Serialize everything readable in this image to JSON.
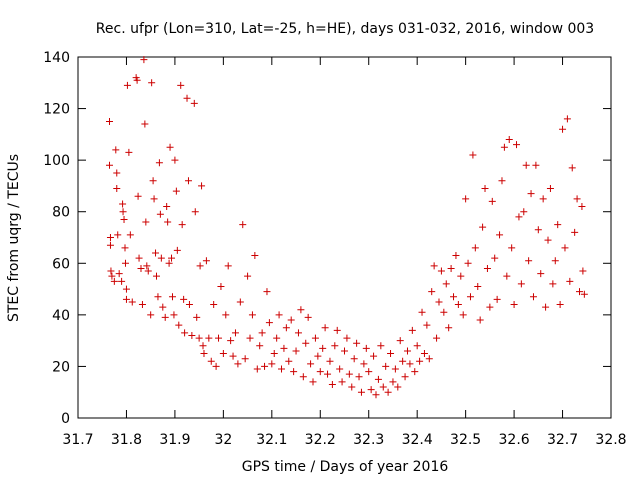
{
  "chart_data": {
    "type": "scatter",
    "title": "Rec. ufpr (Lon=310, Lat=-25, h=HE), days 031-032, 2016, window 003",
    "xlabel": "GPS time / Days of year 2016",
    "ylabel": "STEC from uqrg / TECUs",
    "xlim": [
      31.7,
      32.8
    ],
    "ylim": [
      0,
      140
    ],
    "xticks": [
      "31.7",
      "31.8",
      "31.9",
      "32",
      "32.1",
      "32.2",
      "32.3",
      "32.4",
      "32.5",
      "32.6",
      "32.7",
      "32.8"
    ],
    "yticks": [
      "0",
      "20",
      "40",
      "60",
      "80",
      "100",
      "120",
      "140"
    ],
    "grid": false,
    "marker": "plus",
    "color": "#cc0000",
    "series": [
      {
        "name": "STEC",
        "points": [
          [
            31.765,
            115
          ],
          [
            31.765,
            98
          ],
          [
            31.767,
            70
          ],
          [
            31.767,
            67
          ],
          [
            31.768,
            57
          ],
          [
            31.77,
            55
          ],
          [
            31.775,
            53
          ],
          [
            31.778,
            104
          ],
          [
            31.78,
            95
          ],
          [
            31.78,
            89
          ],
          [
            31.782,
            71
          ],
          [
            31.785,
            56
          ],
          [
            31.79,
            53
          ],
          [
            31.792,
            83
          ],
          [
            31.793,
            80
          ],
          [
            31.795,
            77
          ],
          [
            31.797,
            66
          ],
          [
            31.798,
            60
          ],
          [
            31.8,
            50
          ],
          [
            31.8,
            46
          ],
          [
            31.802,
            129
          ],
          [
            31.805,
            103
          ],
          [
            31.808,
            71
          ],
          [
            31.812,
            45
          ],
          [
            31.82,
            132
          ],
          [
            31.822,
            131
          ],
          [
            31.824,
            86
          ],
          [
            31.826,
            62
          ],
          [
            31.83,
            58
          ],
          [
            31.833,
            44
          ],
          [
            31.836,
            139
          ],
          [
            31.838,
            114
          ],
          [
            31.84,
            76
          ],
          [
            31.842,
            59
          ],
          [
            31.845,
            57
          ],
          [
            31.85,
            40
          ],
          [
            31.852,
            130
          ],
          [
            31.855,
            92
          ],
          [
            31.857,
            85
          ],
          [
            31.86,
            64
          ],
          [
            31.862,
            55
          ],
          [
            31.865,
            47
          ],
          [
            31.868,
            99
          ],
          [
            31.87,
            79
          ],
          [
            31.872,
            62
          ],
          [
            31.875,
            43
          ],
          [
            31.88,
            39
          ],
          [
            31.883,
            82
          ],
          [
            31.885,
            76
          ],
          [
            31.888,
            60
          ],
          [
            31.89,
            105
          ],
          [
            31.893,
            62
          ],
          [
            31.895,
            47
          ],
          [
            31.898,
            40
          ],
          [
            31.9,
            100
          ],
          [
            31.903,
            88
          ],
          [
            31.905,
            65
          ],
          [
            31.908,
            36
          ],
          [
            31.912,
            129
          ],
          [
            31.915,
            75
          ],
          [
            31.918,
            46
          ],
          [
            31.92,
            33
          ],
          [
            31.925,
            124
          ],
          [
            31.928,
            92
          ],
          [
            31.93,
            44
          ],
          [
            31.935,
            32
          ],
          [
            31.94,
            122
          ],
          [
            31.942,
            80
          ],
          [
            31.945,
            39
          ],
          [
            31.95,
            31
          ],
          [
            31.952,
            59
          ],
          [
            31.955,
            90
          ],
          [
            31.958,
            28
          ],
          [
            31.96,
            25
          ],
          [
            31.965,
            61
          ],
          [
            31.97,
            31
          ],
          [
            31.975,
            22
          ],
          [
            31.98,
            44
          ],
          [
            31.985,
            20
          ],
          [
            31.99,
            31
          ],
          [
            31.995,
            51
          ],
          [
            32.0,
            25
          ],
          [
            32.005,
            40
          ],
          [
            32.01,
            59
          ],
          [
            32.015,
            30
          ],
          [
            32.02,
            24
          ],
          [
            32.025,
            33
          ],
          [
            32.03,
            21
          ],
          [
            32.035,
            45
          ],
          [
            32.04,
            75
          ],
          [
            32.045,
            23
          ],
          [
            32.05,
            55
          ],
          [
            32.055,
            31
          ],
          [
            32.06,
            40
          ],
          [
            32.065,
            63
          ],
          [
            32.07,
            19
          ],
          [
            32.075,
            28
          ],
          [
            32.08,
            33
          ],
          [
            32.085,
            20
          ],
          [
            32.09,
            49
          ],
          [
            32.095,
            37
          ],
          [
            32.1,
            21
          ],
          [
            32.105,
            25
          ],
          [
            32.11,
            31
          ],
          [
            32.115,
            40
          ],
          [
            32.12,
            19
          ],
          [
            32.125,
            27
          ],
          [
            32.13,
            35
          ],
          [
            32.135,
            22
          ],
          [
            32.14,
            38
          ],
          [
            32.145,
            18
          ],
          [
            32.15,
            26
          ],
          [
            32.155,
            33
          ],
          [
            32.16,
            42
          ],
          [
            32.165,
            16
          ],
          [
            32.17,
            29
          ],
          [
            32.175,
            39
          ],
          [
            32.18,
            21
          ],
          [
            32.185,
            14
          ],
          [
            32.19,
            31
          ],
          [
            32.195,
            24
          ],
          [
            32.2,
            18
          ],
          [
            32.205,
            27
          ],
          [
            32.21,
            35
          ],
          [
            32.215,
            17
          ],
          [
            32.22,
            22
          ],
          [
            32.225,
            13
          ],
          [
            32.23,
            28
          ],
          [
            32.235,
            34
          ],
          [
            32.24,
            19
          ],
          [
            32.245,
            14
          ],
          [
            32.25,
            26
          ],
          [
            32.255,
            31
          ],
          [
            32.26,
            17
          ],
          [
            32.265,
            12
          ],
          [
            32.27,
            23
          ],
          [
            32.275,
            29
          ],
          [
            32.28,
            16
          ],
          [
            32.285,
            10
          ],
          [
            32.29,
            21
          ],
          [
            32.295,
            27
          ],
          [
            32.3,
            18
          ],
          [
            32.305,
            11
          ],
          [
            32.31,
            24
          ],
          [
            32.315,
            9
          ],
          [
            32.32,
            15
          ],
          [
            32.325,
            28
          ],
          [
            32.33,
            12
          ],
          [
            32.335,
            20
          ],
          [
            32.34,
            10
          ],
          [
            32.345,
            25
          ],
          [
            32.35,
            14
          ],
          [
            32.355,
            19
          ],
          [
            32.36,
            12
          ],
          [
            32.365,
            30
          ],
          [
            32.37,
            22
          ],
          [
            32.375,
            16
          ],
          [
            32.38,
            26
          ],
          [
            32.385,
            21
          ],
          [
            32.39,
            34
          ],
          [
            32.395,
            18
          ],
          [
            32.4,
            28
          ],
          [
            32.405,
            22
          ],
          [
            32.41,
            41
          ],
          [
            32.415,
            25
          ],
          [
            32.42,
            36
          ],
          [
            32.425,
            23
          ],
          [
            32.43,
            49
          ],
          [
            32.435,
            59
          ],
          [
            32.44,
            31
          ],
          [
            32.445,
            45
          ],
          [
            32.45,
            57
          ],
          [
            32.455,
            41
          ],
          [
            32.46,
            52
          ],
          [
            32.465,
            35
          ],
          [
            32.47,
            58
          ],
          [
            32.475,
            47
          ],
          [
            32.48,
            63
          ],
          [
            32.485,
            44
          ],
          [
            32.49,
            55
          ],
          [
            32.495,
            40
          ],
          [
            32.5,
            85
          ],
          [
            32.505,
            60
          ],
          [
            32.51,
            47
          ],
          [
            32.515,
            102
          ],
          [
            32.52,
            66
          ],
          [
            32.525,
            51
          ],
          [
            32.53,
            38
          ],
          [
            32.535,
            74
          ],
          [
            32.54,
            89
          ],
          [
            32.545,
            58
          ],
          [
            32.55,
            43
          ],
          [
            32.555,
            84
          ],
          [
            32.56,
            62
          ],
          [
            32.565,
            46
          ],
          [
            32.57,
            71
          ],
          [
            32.575,
            92
          ],
          [
            32.58,
            105
          ],
          [
            32.585,
            55
          ],
          [
            32.59,
            108
          ],
          [
            32.595,
            66
          ],
          [
            32.6,
            44
          ],
          [
            32.605,
            106
          ],
          [
            32.61,
            78
          ],
          [
            32.615,
            52
          ],
          [
            32.62,
            80
          ],
          [
            32.625,
            98
          ],
          [
            32.63,
            61
          ],
          [
            32.635,
            87
          ],
          [
            32.64,
            47
          ],
          [
            32.645,
            98
          ],
          [
            32.65,
            73
          ],
          [
            32.655,
            56
          ],
          [
            32.66,
            85
          ],
          [
            32.665,
            43
          ],
          [
            32.67,
            69
          ],
          [
            32.675,
            89
          ],
          [
            32.68,
            52
          ],
          [
            32.685,
            61
          ],
          [
            32.69,
            75
          ],
          [
            32.695,
            44
          ],
          [
            32.7,
            112
          ],
          [
            32.705,
            66
          ],
          [
            32.71,
            116
          ],
          [
            32.715,
            53
          ],
          [
            32.72,
            97
          ],
          [
            32.725,
            72
          ],
          [
            32.73,
            85
          ],
          [
            32.735,
            49
          ],
          [
            32.74,
            82
          ],
          [
            32.742,
            57
          ],
          [
            32.745,
            48
          ]
        ]
      }
    ]
  }
}
